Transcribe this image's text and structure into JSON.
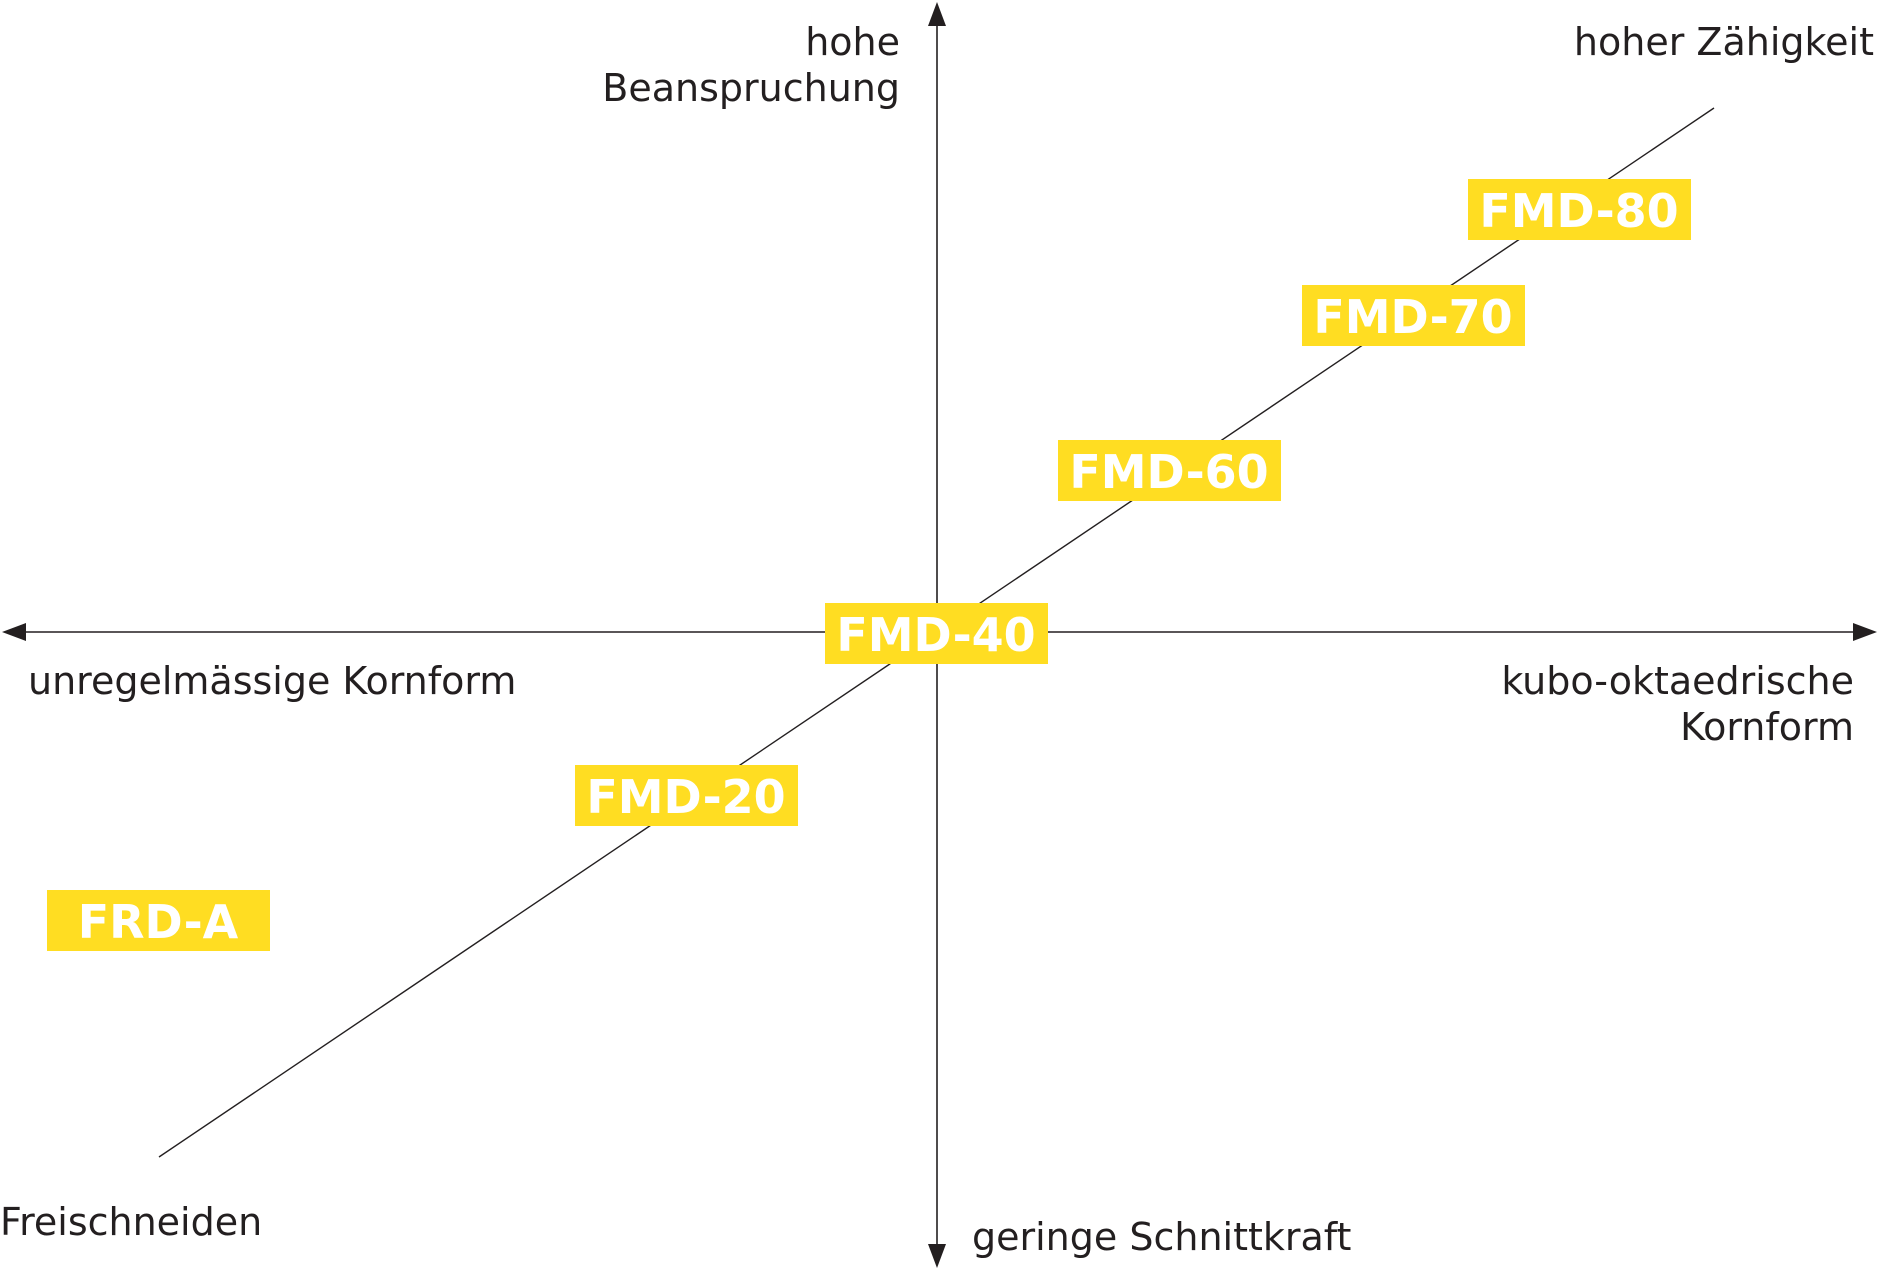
{
  "diagram": {
    "colors": {
      "line": "#231f20",
      "badge": "#ffdd22",
      "badge_text": "#ffffff",
      "label_text": "#231f20"
    },
    "labels": {
      "top_line1": "hohe",
      "top_line2": "Beanspruchung",
      "top_right": "hoher Zähigkeit",
      "left": "unregelmässige Kornform",
      "right_line1": "kubo-oktaedrische",
      "right_line2": "Kornform",
      "bottom_left": "Freischneiden",
      "bottom": "geringe Schnittkraft"
    },
    "products": [
      {
        "id": "frd-a",
        "label": "FRD-A"
      },
      {
        "id": "fmd-20",
        "label": "FMD-20"
      },
      {
        "id": "fmd-40",
        "label": "FMD-40"
      },
      {
        "id": "fmd-60",
        "label": "FMD-60"
      },
      {
        "id": "fmd-70",
        "label": "FMD-70"
      },
      {
        "id": "fmd-80",
        "label": "FMD-80"
      }
    ]
  }
}
